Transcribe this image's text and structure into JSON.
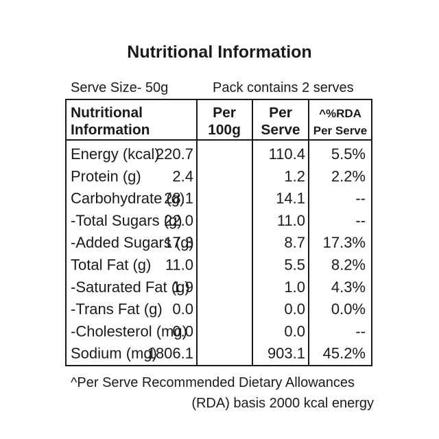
{
  "title": "Nutritional Information",
  "serve_size": "Serve Size- 50g",
  "pack": "Pack contains 2 serves",
  "table": {
    "header": [
      [
        "Nutritional",
        "Information"
      ],
      [
        "Per",
        "100g"
      ],
      [
        "Per",
        "Serve"
      ],
      [
        "^%RDA",
        "Per Serve"
      ]
    ],
    "rows": [
      [
        "Energy (kcal)",
        "220.7",
        "110.4",
        "5.5%"
      ],
      [
        "Protein (g)",
        "2.4",
        "1.2",
        "2.2%"
      ],
      [
        "Carbohydrate (g)",
        "28.1",
        "14.1",
        "--"
      ],
      [
        "-Total Sugars (g)",
        "22.0",
        "11.0",
        "--"
      ],
      [
        "-Added Sugars (g)",
        "17.3",
        "8.7",
        "17.3%"
      ],
      [
        "Total Fat (g)",
        "11.0",
        "5.5",
        "8.2%"
      ],
      [
        "-Saturated Fat (g)",
        "1.9",
        "1.0",
        "4.3%"
      ],
      [
        "-Trans Fat (g)",
        "0.0",
        "0.0",
        "0.0%"
      ],
      [
        "-Cholesterol (mg)",
        "0.0",
        "0.0",
        "--"
      ],
      [
        "Sodium (mg)",
        "1806.1",
        "903.1",
        "45.2%"
      ]
    ]
  },
  "footnote": [
    "^Per Serve Recommended Dietary Allowances",
    "(RDA) basis 2000 kcal energy"
  ]
}
